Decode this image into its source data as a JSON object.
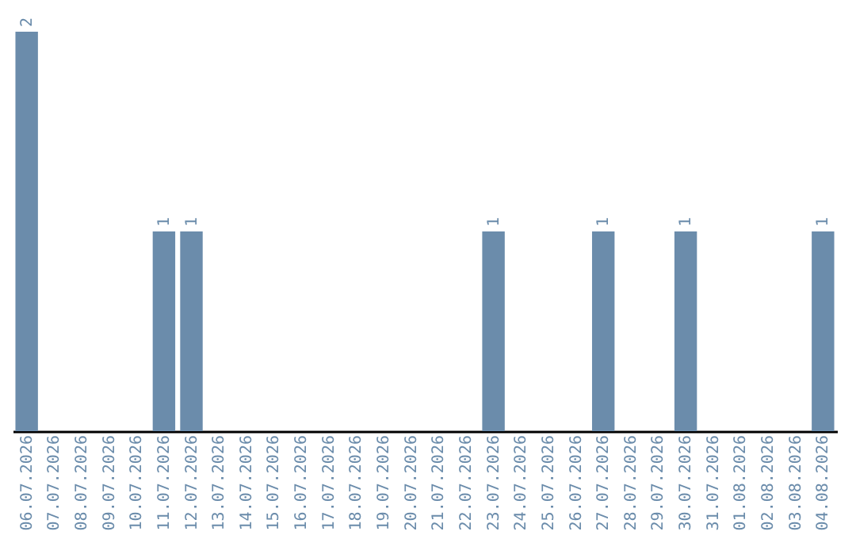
{
  "chart_data": {
    "type": "bar",
    "categories": [
      "06.07.2026",
      "07.07.2026",
      "08.07.2026",
      "09.07.2026",
      "10.07.2026",
      "11.07.2026",
      "12.07.2026",
      "13.07.2026",
      "14.07.2026",
      "15.07.2026",
      "16.07.2026",
      "17.07.2026",
      "18.07.2026",
      "19.07.2026",
      "20.07.2026",
      "21.07.2026",
      "22.07.2026",
      "23.07.2026",
      "24.07.2026",
      "25.07.2026",
      "26.07.2026",
      "27.07.2026",
      "28.07.2026",
      "29.07.2026",
      "30.07.2026",
      "31.07.2026",
      "01.08.2026",
      "02.08.2026",
      "03.08.2026",
      "04.08.2026"
    ],
    "values": [
      2,
      0,
      0,
      0,
      0,
      1,
      1,
      0,
      0,
      0,
      0,
      0,
      0,
      0,
      0,
      0,
      0,
      1,
      0,
      0,
      0,
      1,
      0,
      0,
      1,
      0,
      0,
      0,
      0,
      1
    ],
    "value_labels": [
      "2",
      null,
      null,
      null,
      null,
      "1",
      "1",
      null,
      null,
      null,
      null,
      null,
      null,
      null,
      null,
      null,
      null,
      "1",
      null,
      null,
      null,
      "1",
      null,
      null,
      "1",
      null,
      null,
      null,
      null,
      "1"
    ],
    "color": "#6b8cab",
    "ylim": [
      0,
      2
    ],
    "tick_labels": "x",
    "grid": false
  }
}
